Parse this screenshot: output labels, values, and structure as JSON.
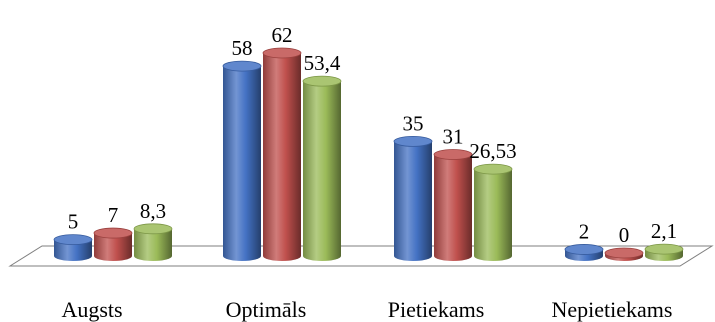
{
  "chart_data": {
    "type": "bar",
    "style": "3d-cylinder",
    "categories": [
      "Augsts",
      "Optimāls",
      "Pietiekams",
      "Nepietiekams"
    ],
    "series": [
      {
        "values": [
          5,
          58,
          35,
          2
        ],
        "labels": [
          "5",
          "58",
          "35",
          "2"
        ],
        "color": "#4472C4"
      },
      {
        "values": [
          7,
          62,
          31,
          0
        ],
        "labels": [
          "7",
          "62",
          "31",
          "0"
        ],
        "color": "#C0504D"
      },
      {
        "values": [
          8.3,
          53.4,
          26.53,
          2.1
        ],
        "labels": [
          "8,3",
          "53,4",
          "26,53",
          "2,1"
        ],
        "color": "#9BBB59"
      }
    ],
    "ylim": [
      0,
      62
    ],
    "grid": false,
    "legend": "none"
  }
}
